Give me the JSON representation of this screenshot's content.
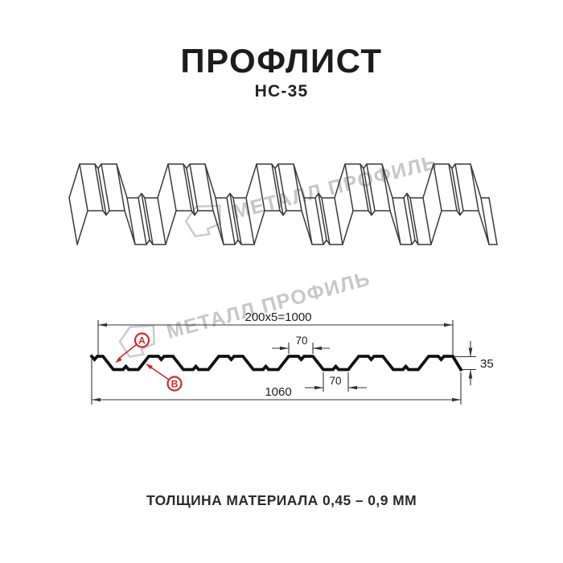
{
  "page": {
    "title": "ПРОФЛИСТ",
    "subtitle": "НС-35",
    "footer_note": "ТОЛЩИНА МАТЕРИАЛА 0,45 – 0,9 ММ"
  },
  "watermark": {
    "text": "МЕТАЛЛ ПРОФИЛЬ"
  },
  "drawing": {
    "dims": {
      "modules": "200x5=1000",
      "total_width": "1060",
      "crest_width": "70",
      "valley_width": "70",
      "height": "35"
    },
    "markers": {
      "a": "A",
      "b": "B"
    },
    "colors": {
      "line": "#3a3a3a",
      "profile": "#101010",
      "accent_red": "#cf2a27",
      "watermark_gray": "#c7c7c7",
      "background": "#ffffff"
    }
  }
}
